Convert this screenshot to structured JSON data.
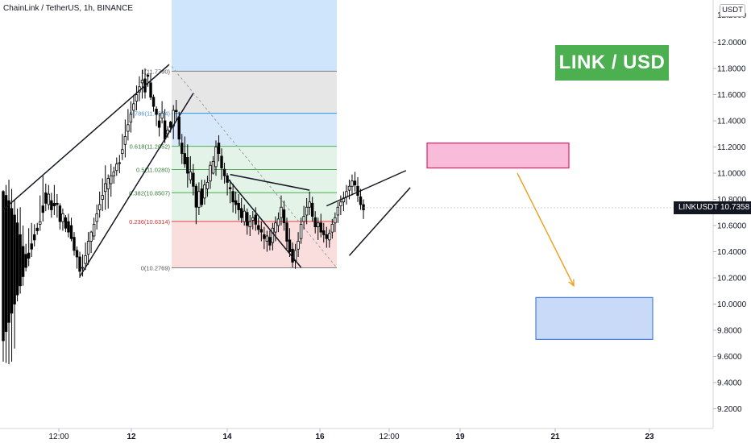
{
  "header": {
    "title": "ChainLink / TetherUS, 1h, BINANCE",
    "unit_badge": "USDT",
    "brand_label": "LINK / USD"
  },
  "price_tag": {
    "symbol": "LINKUSDT",
    "value": "10.7358"
  },
  "colors": {
    "up_candle": "#000000",
    "down_candle": "#000000",
    "fib_top": "#cfe5fb",
    "fib_gray": "#e6e6e6",
    "fib_blue": "#d8e8fb",
    "fib_green": "#e3f3e8",
    "fib_red": "#fadede",
    "sell_zone": "#f8bbd9",
    "sell_zone_border": "#e91e63",
    "target_zone": "#c9daf8",
    "target_zone_border": "#4a7fd4",
    "arrow": "#f0a01a",
    "brand_bg": "#4caf50"
  },
  "chart_data": {
    "type": "candlestick",
    "symbol": "LINKUSDT",
    "timeframe": "1h",
    "y_axis": {
      "range": [
        9.1,
        12.3
      ],
      "ticks": [
        "12.0000",
        "11.8000",
        "11.6000",
        "11.4000",
        "11.2000",
        "11.0000",
        "10.8000",
        "10.6000",
        "10.4000",
        "10.2000",
        "10.0000",
        "9.8000",
        "9.6000",
        "9.4000",
        "9.2000"
      ],
      "top_label": "12.2000"
    },
    "x_axis": {
      "ticks": [
        "12:00",
        "12",
        "14",
        "16",
        "12:00",
        "19",
        "21",
        "23"
      ],
      "bold_ticks": [
        "12",
        "14",
        "16",
        "19",
        "21",
        "23"
      ]
    },
    "last_price": 10.7358,
    "fibonacci_retracement": {
      "high": 11.779,
      "low": 10.2769,
      "levels": [
        {
          "ratio": "1",
          "price": 11.779,
          "label": "1(11.7790)"
        },
        {
          "ratio": "0.786",
          "price": 11.4574,
          "label": "0.786(11.4574)"
        },
        {
          "ratio": "0.618",
          "price": 11.2052,
          "label": "0.618(11.2052)"
        },
        {
          "ratio": "0.5",
          "price": 11.028,
          "label": "0.5(11.0280)"
        },
        {
          "ratio": "0.382",
          "price": 10.8507,
          "label": "0.382(10.8507)"
        },
        {
          "ratio": "0.236",
          "price": 10.6314,
          "label": "0.236(10.6314)"
        },
        {
          "ratio": "0",
          "price": 10.2769,
          "label": "0(10.2769)"
        }
      ]
    },
    "zones": [
      {
        "name": "sell-zone",
        "price_top": 11.23,
        "price_bottom": 11.04
      },
      {
        "name": "target-zone",
        "price_top": 10.05,
        "price_bottom": 9.73
      }
    ],
    "trendlines": [
      {
        "from": [
          0,
          10.72
        ],
        "to": [
          58.5,
          11.83
        ]
      },
      {
        "from": [
          27,
          10.21
        ],
        "to": [
          67,
          11.61
        ]
      },
      {
        "from": [
          80,
          10.99
        ],
        "to": [
          108,
          10.87
        ]
      },
      {
        "from": [
          79.5,
          10.95
        ],
        "to": [
          105,
          10.28
        ]
      },
      {
        "from": [
          114,
          10.75
        ],
        "to": [
          142,
          11.02
        ]
      },
      {
        "from": [
          122,
          10.37
        ],
        "to": [
          143.5,
          10.89
        ]
      }
    ],
    "arrow": {
      "from": [
        164,
        11.0
      ],
      "to": [
        181,
        10.14
      ]
    },
    "candles": [
      [
        10.86,
        10.87,
        9.56,
        9.72
      ],
      [
        10.83,
        10.91,
        9.55,
        9.79
      ],
      [
        10.79,
        10.95,
        9.54,
        9.86
      ],
      [
        10.73,
        10.88,
        9.56,
        9.93
      ],
      [
        10.68,
        10.8,
        9.66,
        10.0
      ],
      [
        10.62,
        10.73,
        10.02,
        10.07
      ],
      [
        10.53,
        10.74,
        10.08,
        10.14
      ],
      [
        10.44,
        10.6,
        10.14,
        10.21
      ],
      [
        10.38,
        10.46,
        10.25,
        10.28
      ],
      [
        10.39,
        10.58,
        10.29,
        10.35
      ],
      [
        10.46,
        10.62,
        10.36,
        10.42
      ],
      [
        10.53,
        10.61,
        10.44,
        10.49
      ],
      [
        10.58,
        10.62,
        10.53,
        10.56
      ],
      [
        10.61,
        10.83,
        10.56,
        10.63
      ],
      [
        10.75,
        10.98,
        10.63,
        10.7
      ],
      [
        10.85,
        10.92,
        10.71,
        10.77
      ],
      [
        10.76,
        10.91,
        10.72,
        10.84
      ],
      [
        10.79,
        10.85,
        10.66,
        10.72
      ],
      [
        10.77,
        10.91,
        10.68,
        10.75
      ],
      [
        10.77,
        10.84,
        10.66,
        10.76
      ],
      [
        10.75,
        10.77,
        10.57,
        10.63
      ],
      [
        10.63,
        10.73,
        10.56,
        10.69
      ],
      [
        10.66,
        10.68,
        10.55,
        10.58
      ],
      [
        10.63,
        10.69,
        10.51,
        10.55
      ],
      [
        10.6,
        10.66,
        10.48,
        10.5
      ],
      [
        10.51,
        10.55,
        10.37,
        10.41
      ],
      [
        10.41,
        10.44,
        10.27,
        10.36
      ],
      [
        10.36,
        10.4,
        10.2,
        10.25
      ],
      [
        10.28,
        10.38,
        10.21,
        10.28
      ],
      [
        10.31,
        10.47,
        10.26,
        10.37
      ],
      [
        10.38,
        10.55,
        10.3,
        10.48
      ],
      [
        10.48,
        10.56,
        10.39,
        10.55
      ],
      [
        10.52,
        10.66,
        10.49,
        10.61
      ],
      [
        10.63,
        10.76,
        10.57,
        10.69
      ],
      [
        10.72,
        10.86,
        10.66,
        10.76
      ],
      [
        10.8,
        10.96,
        10.71,
        10.83
      ],
      [
        10.86,
        11.06,
        10.72,
        10.92
      ],
      [
        10.88,
        10.99,
        10.73,
        10.96
      ],
      [
        10.92,
        11.07,
        10.82,
        10.98
      ],
      [
        10.98,
        11.05,
        10.92,
        11.01
      ],
      [
        11.02,
        11.12,
        10.98,
        11.07
      ],
      [
        11.08,
        11.14,
        11.0,
        11.08
      ],
      [
        11.15,
        11.3,
        11.1,
        11.18
      ],
      [
        11.22,
        11.41,
        11.12,
        11.28
      ],
      [
        11.32,
        11.49,
        11.25,
        11.37
      ],
      [
        11.39,
        11.55,
        11.31,
        11.45
      ],
      [
        11.48,
        11.6,
        11.42,
        11.53
      ],
      [
        11.55,
        11.67,
        11.48,
        11.6
      ],
      [
        11.62,
        11.74,
        11.55,
        11.66
      ],
      [
        11.69,
        11.79,
        11.57,
        11.71
      ],
      [
        11.72,
        11.8,
        11.57,
        11.62
      ],
      [
        11.75,
        11.76,
        11.66,
        11.74
      ],
      [
        11.69,
        11.76,
        11.56,
        11.58
      ],
      [
        11.58,
        11.6,
        11.47,
        11.51
      ],
      [
        11.49,
        11.51,
        11.36,
        11.45
      ],
      [
        11.4,
        11.46,
        11.28,
        11.35
      ],
      [
        11.42,
        11.55,
        11.38,
        11.46
      ],
      [
        11.4,
        11.49,
        11.23,
        11.26
      ],
      [
        11.3,
        11.36,
        11.27,
        11.33
      ],
      [
        11.39,
        11.4,
        11.31,
        11.35
      ],
      [
        11.36,
        11.52,
        11.26,
        11.48
      ],
      [
        11.48,
        11.56,
        11.4,
        11.47
      ],
      [
        11.43,
        11.47,
        11.21,
        11.26
      ],
      [
        11.23,
        11.3,
        11.07,
        11.15
      ],
      [
        11.15,
        11.28,
        11.04,
        11.07
      ],
      [
        11.12,
        11.22,
        10.89,
        11.0
      ],
      [
        10.95,
        11.13,
        10.92,
        11.01
      ],
      [
        11.0,
        11.07,
        10.83,
        10.9
      ],
      [
        10.9,
        10.92,
        10.61,
        10.74
      ],
      [
        10.74,
        10.93,
        10.68,
        10.86
      ],
      [
        10.88,
        10.95,
        10.74,
        10.76
      ],
      [
        10.81,
        10.95,
        10.76,
        10.91
      ],
      [
        10.88,
        10.98,
        10.82,
        10.93
      ],
      [
        10.94,
        11.09,
        10.88,
        11.06
      ],
      [
        11.0,
        11.13,
        10.99,
        11.09
      ],
      [
        11.05,
        11.25,
        10.98,
        11.2
      ],
      [
        11.23,
        11.29,
        11.09,
        11.15
      ],
      [
        11.13,
        11.19,
        10.95,
        11.04
      ],
      [
        11.03,
        11.08,
        10.92,
        10.98
      ],
      [
        10.98,
        11.0,
        10.83,
        10.93
      ],
      [
        10.89,
        10.95,
        10.77,
        10.88
      ],
      [
        10.86,
        10.92,
        10.7,
        10.78
      ],
      [
        10.79,
        10.86,
        10.69,
        10.76
      ],
      [
        10.77,
        10.84,
        10.64,
        10.72
      ],
      [
        10.73,
        10.81,
        10.62,
        10.66
      ],
      [
        10.63,
        10.76,
        10.6,
        10.71
      ],
      [
        10.7,
        10.73,
        10.53,
        10.6
      ],
      [
        10.59,
        10.68,
        10.52,
        10.63
      ],
      [
        10.64,
        10.71,
        10.57,
        10.66
      ],
      [
        10.68,
        10.74,
        10.56,
        10.61
      ],
      [
        10.6,
        10.66,
        10.53,
        10.57
      ],
      [
        10.57,
        10.63,
        10.48,
        10.55
      ],
      [
        10.53,
        10.59,
        10.42,
        10.5
      ],
      [
        10.48,
        10.56,
        10.4,
        10.52
      ],
      [
        10.51,
        10.56,
        10.41,
        10.45
      ],
      [
        10.47,
        10.62,
        10.41,
        10.58
      ],
      [
        10.55,
        10.67,
        10.48,
        10.62
      ],
      [
        10.6,
        10.7,
        10.55,
        10.65
      ],
      [
        10.66,
        10.83,
        10.6,
        10.74
      ],
      [
        10.72,
        10.79,
        10.56,
        10.62
      ],
      [
        10.62,
        10.66,
        10.42,
        10.48
      ],
      [
        10.49,
        10.58,
        10.36,
        10.4
      ],
      [
        10.42,
        10.47,
        10.28,
        10.32
      ],
      [
        10.33,
        10.46,
        10.27,
        10.41
      ],
      [
        10.42,
        10.55,
        10.36,
        10.48
      ],
      [
        10.5,
        10.66,
        10.46,
        10.61
      ],
      [
        10.63,
        10.75,
        10.57,
        10.67
      ],
      [
        10.68,
        10.81,
        10.61,
        10.74
      ],
      [
        10.74,
        10.86,
        10.68,
        10.78
      ],
      [
        10.77,
        10.82,
        10.63,
        10.67
      ],
      [
        10.66,
        10.71,
        10.54,
        10.59
      ],
      [
        10.59,
        10.66,
        10.49,
        10.62
      ],
      [
        10.62,
        10.69,
        10.51,
        10.55
      ],
      [
        10.56,
        10.62,
        10.47,
        10.53
      ],
      [
        10.53,
        10.59,
        10.43,
        10.5
      ],
      [
        10.49,
        10.57,
        10.43,
        10.54
      ],
      [
        10.55,
        10.65,
        10.5,
        10.61
      ],
      [
        10.62,
        10.7,
        10.55,
        10.66
      ],
      [
        10.68,
        10.78,
        10.62,
        10.74
      ],
      [
        10.75,
        10.83,
        10.68,
        10.78
      ],
      [
        10.78,
        10.86,
        10.71,
        10.81
      ],
      [
        10.82,
        10.91,
        10.76,
        10.86
      ],
      [
        10.87,
        10.95,
        10.8,
        10.9
      ],
      [
        10.9,
        10.99,
        10.83,
        10.94
      ],
      [
        10.94,
        11.01,
        10.86,
        10.91
      ],
      [
        10.9,
        10.97,
        10.78,
        10.83
      ],
      [
        10.82,
        10.88,
        10.72,
        10.76
      ],
      [
        10.76,
        10.8,
        10.65,
        10.72
      ]
    ]
  }
}
